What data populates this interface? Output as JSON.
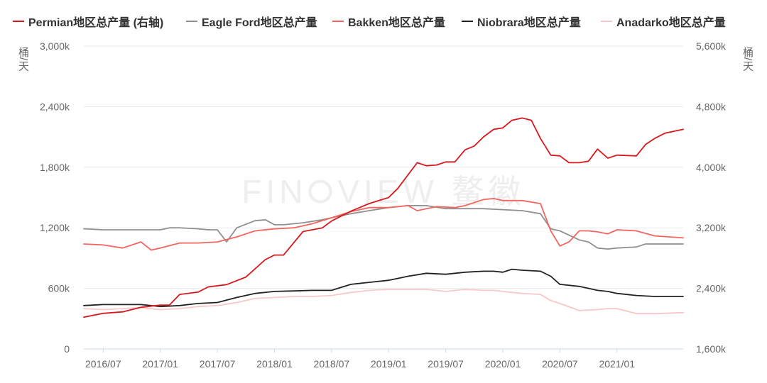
{
  "chart_data": {
    "type": "line",
    "watermark": "FIN⭘VIEW 鳌徽",
    "y_left": {
      "unit": "桶/天",
      "ticks": [
        "0",
        "600k",
        "1,200k",
        "1,800k",
        "2,400k",
        "3,000k"
      ],
      "range": [
        0,
        3000000
      ]
    },
    "y_right": {
      "unit": "桶/天",
      "ticks": [
        "1,600k",
        "2,400k",
        "3,200k",
        "4,000k",
        "4,800k",
        "5,600k"
      ],
      "range": [
        1600000,
        5600000
      ]
    },
    "x_ticks": [
      "2016/07",
      "2017/01",
      "2017/07",
      "2018/01",
      "2018/07",
      "2019/01",
      "2019/07",
      "2020/01",
      "2020/07",
      "2021/01"
    ],
    "x_range": [
      2016.33,
      2021.58
    ],
    "grid": true,
    "legend_position": "top",
    "series": [
      {
        "name": "Permian地区总产量 (右轴)",
        "axis": "right",
        "color": "#d7191c",
        "points": [
          [
            2016.33,
            2020000
          ],
          [
            2016.5,
            2070000
          ],
          [
            2016.67,
            2090000
          ],
          [
            2016.83,
            2150000
          ],
          [
            2017.0,
            2180000
          ],
          [
            2017.08,
            2180000
          ],
          [
            2017.17,
            2320000
          ],
          [
            2017.33,
            2350000
          ],
          [
            2017.42,
            2420000
          ],
          [
            2017.58,
            2450000
          ],
          [
            2017.75,
            2550000
          ],
          [
            2017.92,
            2780000
          ],
          [
            2018.0,
            2840000
          ],
          [
            2018.08,
            2840000
          ],
          [
            2018.25,
            3150000
          ],
          [
            2018.42,
            3200000
          ],
          [
            2018.5,
            3290000
          ],
          [
            2018.67,
            3420000
          ],
          [
            2018.83,
            3520000
          ],
          [
            2019.0,
            3600000
          ],
          [
            2019.08,
            3720000
          ],
          [
            2019.25,
            4060000
          ],
          [
            2019.33,
            4020000
          ],
          [
            2019.42,
            4030000
          ],
          [
            2019.5,
            4070000
          ],
          [
            2019.58,
            4070000
          ],
          [
            2019.67,
            4230000
          ],
          [
            2019.75,
            4280000
          ],
          [
            2019.83,
            4400000
          ],
          [
            2019.92,
            4500000
          ],
          [
            2020.0,
            4520000
          ],
          [
            2020.08,
            4620000
          ],
          [
            2020.17,
            4650000
          ],
          [
            2020.25,
            4620000
          ],
          [
            2020.33,
            4380000
          ],
          [
            2020.42,
            4160000
          ],
          [
            2020.5,
            4150000
          ],
          [
            2020.58,
            4060000
          ],
          [
            2020.67,
            4060000
          ],
          [
            2020.75,
            4080000
          ],
          [
            2020.83,
            4240000
          ],
          [
            2020.92,
            4120000
          ],
          [
            2021.0,
            4160000
          ],
          [
            2021.17,
            4150000
          ],
          [
            2021.25,
            4300000
          ],
          [
            2021.33,
            4380000
          ],
          [
            2021.42,
            4450000
          ],
          [
            2021.58,
            4500000
          ]
        ]
      },
      {
        "name": "Eagle Ford地区总产量",
        "axis": "left",
        "color": "#909090",
        "points": [
          [
            2016.33,
            1190000
          ],
          [
            2016.5,
            1180000
          ],
          [
            2016.67,
            1180000
          ],
          [
            2016.83,
            1180000
          ],
          [
            2017.0,
            1180000
          ],
          [
            2017.08,
            1200000
          ],
          [
            2017.17,
            1200000
          ],
          [
            2017.33,
            1190000
          ],
          [
            2017.42,
            1180000
          ],
          [
            2017.5,
            1180000
          ],
          [
            2017.58,
            1060000
          ],
          [
            2017.67,
            1200000
          ],
          [
            2017.83,
            1270000
          ],
          [
            2017.92,
            1280000
          ],
          [
            2018.0,
            1230000
          ],
          [
            2018.08,
            1230000
          ],
          [
            2018.25,
            1250000
          ],
          [
            2018.42,
            1280000
          ],
          [
            2018.5,
            1300000
          ],
          [
            2018.67,
            1340000
          ],
          [
            2018.83,
            1370000
          ],
          [
            2019.0,
            1400000
          ],
          [
            2019.17,
            1420000
          ],
          [
            2019.33,
            1420000
          ],
          [
            2019.5,
            1390000
          ],
          [
            2019.67,
            1390000
          ],
          [
            2019.83,
            1390000
          ],
          [
            2020.0,
            1380000
          ],
          [
            2020.17,
            1370000
          ],
          [
            2020.33,
            1340000
          ],
          [
            2020.42,
            1190000
          ],
          [
            2020.5,
            1170000
          ],
          [
            2020.67,
            1080000
          ],
          [
            2020.75,
            1060000
          ],
          [
            2020.83,
            1000000
          ],
          [
            2020.92,
            990000
          ],
          [
            2021.0,
            1000000
          ],
          [
            2021.17,
            1010000
          ],
          [
            2021.25,
            1040000
          ],
          [
            2021.42,
            1040000
          ],
          [
            2021.58,
            1040000
          ]
        ]
      },
      {
        "name": "Bakken地区总产量",
        "axis": "left",
        "color": "#f4655f",
        "points": [
          [
            2016.33,
            1040000
          ],
          [
            2016.5,
            1030000
          ],
          [
            2016.67,
            1000000
          ],
          [
            2016.83,
            1060000
          ],
          [
            2016.92,
            980000
          ],
          [
            2017.0,
            1000000
          ],
          [
            2017.17,
            1050000
          ],
          [
            2017.33,
            1050000
          ],
          [
            2017.5,
            1060000
          ],
          [
            2017.67,
            1110000
          ],
          [
            2017.83,
            1170000
          ],
          [
            2018.0,
            1190000
          ],
          [
            2018.17,
            1200000
          ],
          [
            2018.33,
            1240000
          ],
          [
            2018.5,
            1300000
          ],
          [
            2018.67,
            1360000
          ],
          [
            2018.83,
            1400000
          ],
          [
            2019.0,
            1400000
          ],
          [
            2019.17,
            1420000
          ],
          [
            2019.25,
            1370000
          ],
          [
            2019.42,
            1410000
          ],
          [
            2019.58,
            1400000
          ],
          [
            2019.67,
            1420000
          ],
          [
            2019.83,
            1480000
          ],
          [
            2019.92,
            1490000
          ],
          [
            2020.0,
            1470000
          ],
          [
            2020.17,
            1470000
          ],
          [
            2020.33,
            1440000
          ],
          [
            2020.42,
            1170000
          ],
          [
            2020.5,
            1020000
          ],
          [
            2020.58,
            1060000
          ],
          [
            2020.67,
            1170000
          ],
          [
            2020.75,
            1170000
          ],
          [
            2020.83,
            1160000
          ],
          [
            2020.92,
            1140000
          ],
          [
            2021.0,
            1180000
          ],
          [
            2021.17,
            1170000
          ],
          [
            2021.33,
            1120000
          ],
          [
            2021.58,
            1100000
          ]
        ]
      },
      {
        "name": "Niobrara地区总产量",
        "axis": "left",
        "color": "#222222",
        "points": [
          [
            2016.33,
            430000
          ],
          [
            2016.5,
            440000
          ],
          [
            2016.67,
            440000
          ],
          [
            2016.83,
            440000
          ],
          [
            2017.0,
            420000
          ],
          [
            2017.17,
            430000
          ],
          [
            2017.33,
            450000
          ],
          [
            2017.5,
            460000
          ],
          [
            2017.67,
            510000
          ],
          [
            2017.83,
            550000
          ],
          [
            2018.0,
            570000
          ],
          [
            2018.17,
            575000
          ],
          [
            2018.33,
            580000
          ],
          [
            2018.5,
            580000
          ],
          [
            2018.67,
            640000
          ],
          [
            2018.83,
            660000
          ],
          [
            2019.0,
            680000
          ],
          [
            2019.17,
            720000
          ],
          [
            2019.33,
            750000
          ],
          [
            2019.5,
            740000
          ],
          [
            2019.67,
            760000
          ],
          [
            2019.83,
            770000
          ],
          [
            2019.92,
            770000
          ],
          [
            2020.0,
            760000
          ],
          [
            2020.08,
            790000
          ],
          [
            2020.17,
            780000
          ],
          [
            2020.33,
            770000
          ],
          [
            2020.42,
            720000
          ],
          [
            2020.5,
            640000
          ],
          [
            2020.67,
            620000
          ],
          [
            2020.83,
            580000
          ],
          [
            2020.92,
            570000
          ],
          [
            2021.0,
            550000
          ],
          [
            2021.17,
            530000
          ],
          [
            2021.33,
            520000
          ],
          [
            2021.58,
            520000
          ]
        ]
      },
      {
        "name": "Anadarko地区总产量",
        "axis": "left",
        "color": "#f8c8c8",
        "points": [
          [
            2016.33,
            400000
          ],
          [
            2016.5,
            390000
          ],
          [
            2016.67,
            400000
          ],
          [
            2016.83,
            410000
          ],
          [
            2017.0,
            390000
          ],
          [
            2017.17,
            400000
          ],
          [
            2017.33,
            420000
          ],
          [
            2017.5,
            430000
          ],
          [
            2017.67,
            460000
          ],
          [
            2017.83,
            500000
          ],
          [
            2018.0,
            510000
          ],
          [
            2018.17,
            520000
          ],
          [
            2018.33,
            520000
          ],
          [
            2018.5,
            530000
          ],
          [
            2018.67,
            560000
          ],
          [
            2018.83,
            580000
          ],
          [
            2019.0,
            590000
          ],
          [
            2019.17,
            590000
          ],
          [
            2019.33,
            590000
          ],
          [
            2019.5,
            570000
          ],
          [
            2019.67,
            590000
          ],
          [
            2019.83,
            580000
          ],
          [
            2019.92,
            580000
          ],
          [
            2020.0,
            570000
          ],
          [
            2020.17,
            550000
          ],
          [
            2020.33,
            540000
          ],
          [
            2020.42,
            480000
          ],
          [
            2020.5,
            450000
          ],
          [
            2020.67,
            380000
          ],
          [
            2020.83,
            390000
          ],
          [
            2020.92,
            400000
          ],
          [
            2021.0,
            400000
          ],
          [
            2021.17,
            350000
          ],
          [
            2021.33,
            350000
          ],
          [
            2021.58,
            360000
          ]
        ]
      }
    ]
  }
}
